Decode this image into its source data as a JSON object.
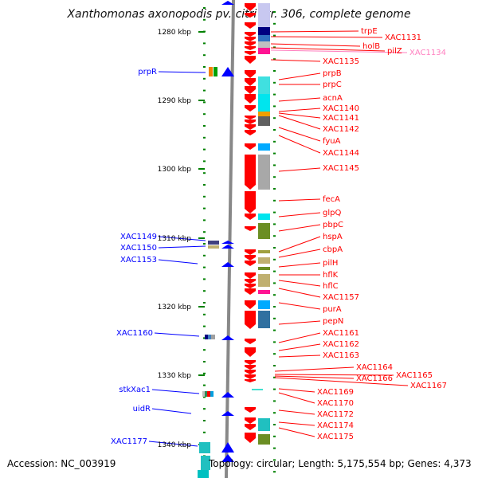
{
  "title": "Xanthomonas axonopodis pv. citri str. 306, complete genome",
  "accession": "Accession: NC_003919",
  "summary": "Topology: circular; Length: 5,175,554 bp; Genes: 4,373",
  "colors": {
    "forward": "#0000ff",
    "reverse": "#ff0000",
    "highlight": "#ff80c0",
    "ruler": "#008000",
    "axis": "#888888"
  },
  "kbp_ticks": [
    "1280 kbp",
    "1290 kbp",
    "1300 kbp",
    "1310 kbp",
    "1320 kbp",
    "1330 kbp",
    "1340 kbp"
  ],
  "left_genes": [
    "prpR",
    "XAC1149",
    "XAC1150",
    "XAC1153",
    "XAC1160",
    "stkXac1",
    "uidR",
    "XAC1177"
  ],
  "right_genes": [
    "trpE",
    "XAC1131",
    "holB",
    "pilZ",
    "XAC1134",
    "XAC1135",
    "prpB",
    "prpC",
    "acnA",
    "XAC1140",
    "XAC1141",
    "XAC1142",
    "fyuA",
    "XAC1144",
    "XAC1145",
    "fecA",
    "glpQ",
    "pbpC",
    "hspA",
    "cbpA",
    "pilH",
    "hflK",
    "hflC",
    "XAC1157",
    "purA",
    "pepN",
    "XAC1161",
    "XAC1162",
    "XAC1163",
    "XAC1164",
    "XAC1165",
    "XAC1166",
    "XAC1167",
    "XAC1169",
    "XAC1170",
    "XAC1172",
    "XAC1174",
    "XAC1175"
  ]
}
